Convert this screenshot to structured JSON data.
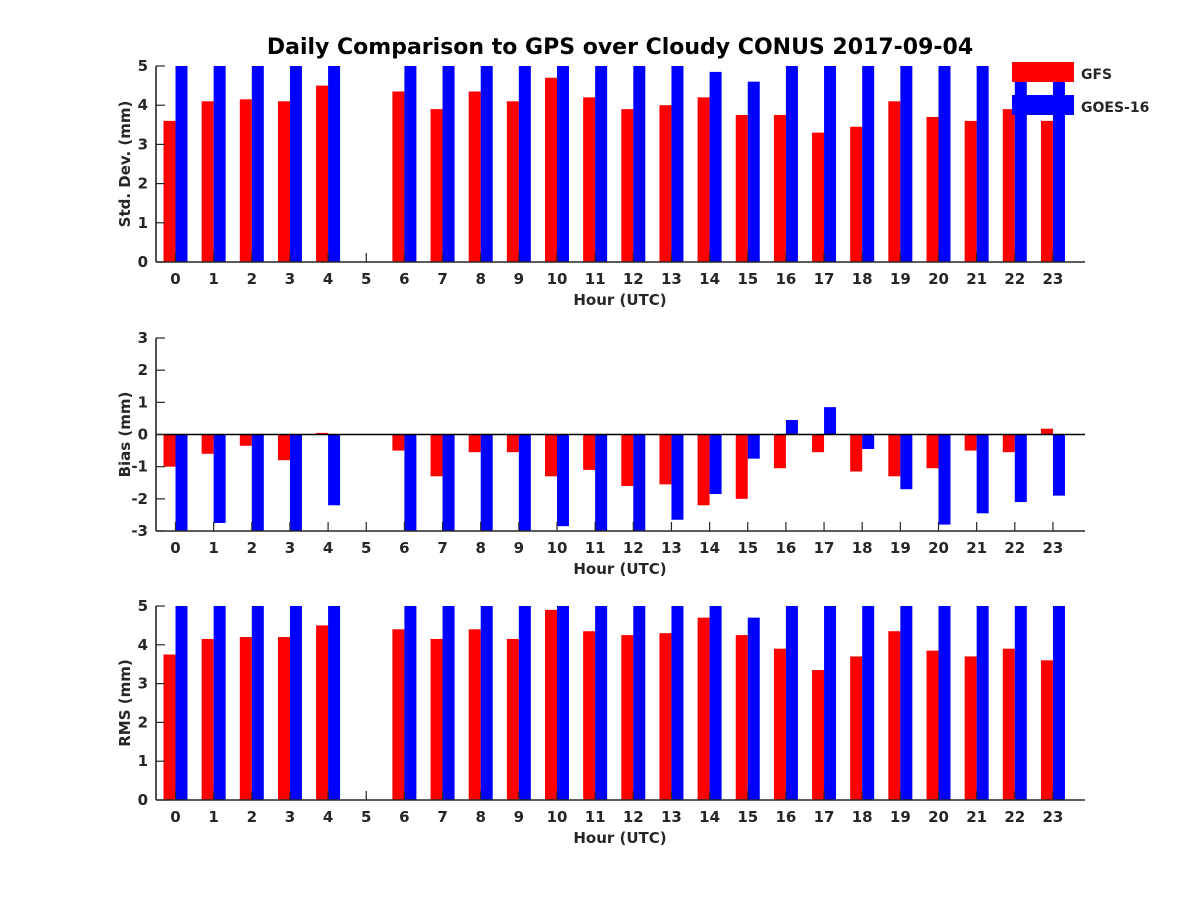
{
  "figure": {
    "title": "Daily Comparison to GPS over Cloudy CONUS 2017-09-04"
  },
  "legend": {
    "placement": "top-right",
    "entries": [
      {
        "name": "GFS",
        "color": "#ff0000"
      },
      {
        "name": "GOES-16",
        "color": "#0000ff"
      }
    ]
  },
  "chart_data": [
    {
      "type": "bar",
      "title": "Daily Comparison to GPS over Cloudy CONUS 2017-09-04",
      "xlabel": "Hour (UTC)",
      "ylabel": "Std. Dev. (mm)",
      "ylim": [
        0,
        5
      ],
      "yticks": [
        0,
        1,
        2,
        3,
        4,
        5
      ],
      "grid": false,
      "categories": [
        "0",
        "1",
        "2",
        "3",
        "4",
        "5",
        "6",
        "7",
        "8",
        "9",
        "10",
        "11",
        "12",
        "13",
        "14",
        "15",
        "16",
        "17",
        "18",
        "19",
        "20",
        "21",
        "22",
        "23"
      ],
      "series": [
        {
          "name": "GFS",
          "color": "#ff0000",
          "values": [
            3.6,
            4.1,
            4.15,
            4.1,
            4.5,
            null,
            4.35,
            3.9,
            4.35,
            4.1,
            4.7,
            4.2,
            3.9,
            4.0,
            4.2,
            3.75,
            3.75,
            3.3,
            3.45,
            4.1,
            3.7,
            3.6,
            3.9,
            3.6
          ]
        },
        {
          "name": "GOES-16",
          "color": "#0000ff",
          "values": [
            5,
            5,
            5,
            5,
            5,
            null,
            5,
            5,
            5,
            5,
            5,
            5,
            5,
            5,
            4.85,
            4.6,
            5,
            5,
            5,
            5,
            5,
            5,
            5,
            5
          ]
        }
      ]
    },
    {
      "type": "bar",
      "title": "",
      "xlabel": "Hour (UTC)",
      "ylabel": "Bias (mm)",
      "ylim": [
        -3,
        3
      ],
      "yticks": [
        -3,
        -2,
        -1,
        0,
        1,
        2,
        3
      ],
      "grid": false,
      "categories": [
        "0",
        "1",
        "2",
        "3",
        "4",
        "5",
        "6",
        "7",
        "8",
        "9",
        "10",
        "11",
        "12",
        "13",
        "14",
        "15",
        "16",
        "17",
        "18",
        "19",
        "20",
        "21",
        "22",
        "23"
      ],
      "series": [
        {
          "name": "GFS",
          "color": "#ff0000",
          "values": [
            -1.0,
            -0.6,
            -0.35,
            -0.8,
            0.05,
            null,
            -0.5,
            -1.3,
            -0.55,
            -0.55,
            -1.3,
            -1.1,
            -1.6,
            -1.55,
            -2.2,
            -2.0,
            -1.05,
            -0.55,
            -1.15,
            -1.3,
            -1.05,
            -0.5,
            -0.55,
            0.18
          ]
        },
        {
          "name": "GOES-16",
          "color": "#0000ff",
          "values": [
            -3,
            -2.75,
            -3,
            -3,
            -2.2,
            null,
            -3,
            -3,
            -3,
            -3,
            -2.85,
            -3,
            -3,
            -2.65,
            -1.85,
            -0.75,
            0.45,
            0.85,
            -0.45,
            -1.7,
            -2.8,
            -2.45,
            -2.1,
            -1.9
          ]
        }
      ]
    },
    {
      "type": "bar",
      "title": "",
      "xlabel": "Hour (UTC)",
      "ylabel": "RMS (mm)",
      "ylim": [
        0,
        5
      ],
      "yticks": [
        0,
        1,
        2,
        3,
        4,
        5
      ],
      "grid": false,
      "categories": [
        "0",
        "1",
        "2",
        "3",
        "4",
        "5",
        "6",
        "7",
        "8",
        "9",
        "10",
        "11",
        "12",
        "13",
        "14",
        "15",
        "16",
        "17",
        "18",
        "19",
        "20",
        "21",
        "22",
        "23"
      ],
      "series": [
        {
          "name": "GFS",
          "color": "#ff0000",
          "values": [
            3.75,
            4.15,
            4.2,
            4.2,
            4.5,
            null,
            4.4,
            4.15,
            4.4,
            4.15,
            4.9,
            4.35,
            4.25,
            4.3,
            4.7,
            4.25,
            3.9,
            3.35,
            3.7,
            4.35,
            3.85,
            3.7,
            3.9,
            3.6
          ]
        },
        {
          "name": "GOES-16",
          "color": "#0000ff",
          "values": [
            5,
            5,
            5,
            5,
            5,
            null,
            5,
            5,
            5,
            5,
            5,
            5,
            5,
            5,
            5,
            4.7,
            5,
            5,
            5,
            5,
            5,
            5,
            5,
            5
          ]
        }
      ]
    }
  ]
}
